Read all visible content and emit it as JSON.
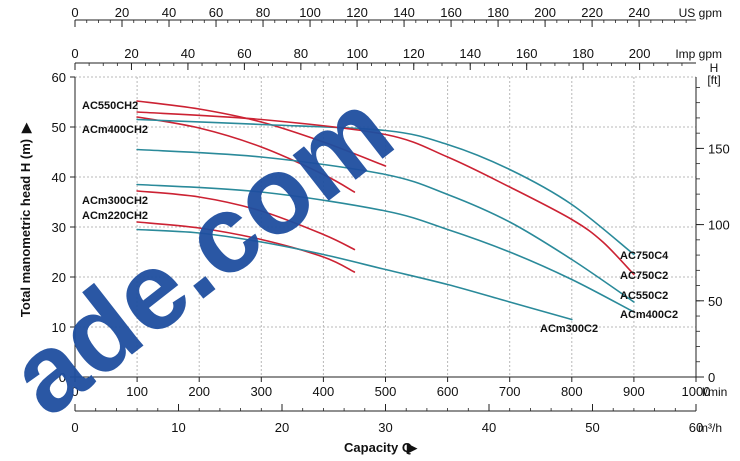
{
  "chart_data": {
    "type": "line",
    "x_unit": "l/min",
    "y_unit": "m",
    "xlim": [
      0,
      1000
    ],
    "ylim": [
      0,
      60
    ],
    "grid": true,
    "xlabel": "Capacity Q",
    "ylabel": "Total manometric head H (m)",
    "axes": {
      "main_x": {
        "unit": "l/min",
        "ticks": [
          0,
          100,
          200,
          300,
          400,
          500,
          600,
          700,
          800,
          900,
          1000
        ]
      },
      "m3h": {
        "unit": "m³/h",
        "ticks": [
          0,
          10,
          20,
          30,
          40,
          50,
          60
        ]
      },
      "us_gpm": {
        "unit": "US gpm",
        "ticks": [
          0,
          20,
          40,
          60,
          80,
          100,
          120,
          140,
          160,
          180,
          200,
          220,
          240
        ]
      },
      "imp_gpm": {
        "unit": "Imp gpm",
        "ticks": [
          0,
          20,
          40,
          60,
          80,
          100,
          120,
          140,
          160,
          180,
          200
        ]
      },
      "main_y": {
        "unit": "m",
        "ticks": [
          0,
          10,
          20,
          30,
          40,
          50,
          60
        ]
      },
      "right_y": {
        "unit_line1": "H",
        "unit_line2": "[ft]",
        "ticks": [
          0,
          50,
          100,
          150
        ]
      }
    },
    "series": [
      {
        "name": "AC550CH2",
        "color": "#cc2233",
        "x": [
          100,
          200,
          300,
          400,
          500
        ],
        "y": [
          55.2,
          53.6,
          51.0,
          47.0,
          42.2
        ]
      },
      {
        "name": "ACm400CH2",
        "color": "#cc2233",
        "x": [
          100,
          200,
          300,
          400,
          450
        ],
        "y": [
          52.0,
          49.8,
          46.0,
          40.5,
          37.0
        ]
      },
      {
        "name": "ACm300CH2",
        "color": "#cc2233",
        "x": [
          100,
          200,
          300,
          400,
          450
        ],
        "y": [
          37.2,
          36.0,
          33.2,
          28.5,
          25.5
        ]
      },
      {
        "name": "ACm220CH2",
        "color": "#cc2233",
        "x": [
          100,
          200,
          300,
          400,
          450
        ],
        "y": [
          31.0,
          29.8,
          27.5,
          24.0,
          21.0
        ]
      },
      {
        "name": "AC750C4",
        "color": "#2a8a9a",
        "x": [
          100,
          300,
          500,
          600,
          700,
          800,
          900
        ],
        "y": [
          51.5,
          50.5,
          49.3,
          46.5,
          41.5,
          34.5,
          24.5
        ]
      },
      {
        "name": "AC750C2",
        "color": "#cc2233",
        "x": [
          100,
          300,
          500,
          600,
          700,
          800,
          850,
          900
        ],
        "y": [
          53.0,
          51.5,
          48.5,
          44.0,
          38.0,
          31.5,
          27.0,
          20.5
        ]
      },
      {
        "name": "AC550C2",
        "color": "#2a8a9a",
        "x": [
          100,
          300,
          500,
          600,
          700,
          800,
          900
        ],
        "y": [
          45.5,
          44.0,
          40.5,
          36.5,
          31.0,
          23.5,
          15.0
        ]
      },
      {
        "name": "ACm400C2",
        "color": "#2a8a9a",
        "x": [
          100,
          300,
          500,
          600,
          700,
          800,
          900
        ],
        "y": [
          38.5,
          37.0,
          33.2,
          29.5,
          25.0,
          19.5,
          13.0
        ]
      },
      {
        "name": "ACm300C2",
        "color": "#2a8a9a",
        "x": [
          100,
          200,
          300,
          400,
          500,
          600,
          700,
          800
        ],
        "y": [
          29.5,
          28.8,
          27.0,
          24.5,
          21.5,
          18.5,
          15.0,
          11.5
        ]
      }
    ],
    "labels": {
      "AC550CH2": "AC550CH2",
      "ACm400CH2": "ACm400CH2",
      "ACm300CH2": "ACm300CH2",
      "ACm220CH2": "ACm220CH2",
      "AC750C4": "AC750C4",
      "AC750C2": "AC750C2",
      "AC550C2": "AC550C2",
      "ACm400C2": "ACm400C2",
      "ACm300C2": "ACm300C2"
    },
    "watermark": "ade.com"
  }
}
